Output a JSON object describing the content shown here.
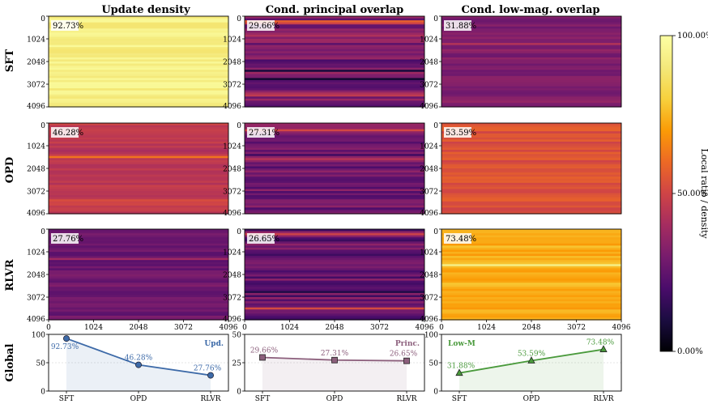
{
  "columns": [
    {
      "key": "update",
      "title": "Update density"
    },
    {
      "key": "principal",
      "title": "Cond. principal overlap"
    },
    {
      "key": "lowmag",
      "title": "Cond. low-mag. overlap"
    }
  ],
  "rows": [
    {
      "key": "sft",
      "label": "SFT"
    },
    {
      "key": "opd",
      "label": "OPD"
    },
    {
      "key": "rlvr",
      "label": "RLVR"
    }
  ],
  "global_row_label": "Global",
  "colorbar": {
    "label": "Local ratio / density",
    "ticks": [
      "0.00%",
      "50.00%",
      "100.00%"
    ],
    "colormap": "inferno"
  },
  "chart_data": [
    {
      "type": "heatmap",
      "title": "Update density",
      "xlim": [
        0,
        4096
      ],
      "ylim": [
        0,
        4096
      ],
      "x_ticks": [
        "0",
        "1024",
        "2048",
        "3072",
        "4096"
      ],
      "y_ticks": [
        "0",
        "1024",
        "2048",
        "3072",
        "4096"
      ],
      "cells": [
        {
          "row": "SFT",
          "value": 92.73,
          "label": "92.73%",
          "bands": [
            {
              "pos": 0.3,
              "delta": -0.05
            },
            {
              "pos": 0.38,
              "delta": -0.03
            },
            {
              "pos": 0.55,
              "delta": -0.02
            }
          ]
        },
        {
          "row": "OPD",
          "value": 46.28,
          "label": "46.28%",
          "bands": [
            {
              "pos": 0.38,
              "delta": 0.12
            },
            {
              "pos": 0.3,
              "delta": -0.06
            },
            {
              "pos": 0.78,
              "delta": -0.05
            },
            {
              "pos": 0.85,
              "delta": 0.05
            }
          ]
        },
        {
          "row": "RLVR",
          "value": 27.76,
          "label": "27.76%",
          "bands": [
            {
              "pos": 0.33,
              "delta": 0.1
            },
            {
              "pos": 0.36,
              "delta": -0.04
            },
            {
              "pos": 0.78,
              "delta": 0.06
            }
          ]
        }
      ]
    },
    {
      "type": "heatmap",
      "title": "Cond. principal overlap",
      "xlim": [
        0,
        4096
      ],
      "ylim": [
        0,
        4096
      ],
      "x_ticks": [
        "0",
        "1024",
        "2048",
        "3072",
        "4096"
      ],
      "y_ticks": [
        "0",
        "1024",
        "2048",
        "3072",
        "4096"
      ],
      "cells": [
        {
          "row": "SFT",
          "value": 29.66,
          "label": "29.66%",
          "bands": [
            {
              "pos": 0.07,
              "delta": 0.2
            },
            {
              "pos": 0.22,
              "delta": 0.12
            },
            {
              "pos": 0.6,
              "delta": -0.12
            },
            {
              "pos": 0.7,
              "delta": -0.14
            },
            {
              "pos": 0.86,
              "delta": 0.16
            }
          ]
        },
        {
          "row": "OPD",
          "value": 27.31,
          "label": "27.31%",
          "bands": [
            {
              "pos": 0.07,
              "delta": 0.18
            },
            {
              "pos": 0.4,
              "delta": 0.1
            },
            {
              "pos": 0.65,
              "delta": -0.12
            },
            {
              "pos": 0.72,
              "delta": -0.1
            },
            {
              "pos": 0.88,
              "delta": 0.14
            }
          ]
        },
        {
          "row": "RLVR",
          "value": 26.65,
          "label": "26.65%",
          "bands": [
            {
              "pos": 0.06,
              "delta": 0.18
            },
            {
              "pos": 0.4,
              "delta": 0.08
            },
            {
              "pos": 0.68,
              "delta": -0.12
            },
            {
              "pos": 0.87,
              "delta": 0.16
            }
          ]
        }
      ]
    },
    {
      "type": "heatmap",
      "title": "Cond. low-mag. overlap",
      "xlim": [
        0,
        4096
      ],
      "ylim": [
        0,
        4096
      ],
      "x_ticks": [
        "0",
        "1024",
        "2048",
        "3072",
        "4096"
      ],
      "y_ticks": [
        "0",
        "1024",
        "2048",
        "3072",
        "4096"
      ],
      "cells": [
        {
          "row": "SFT",
          "value": 31.88,
          "label": "31.88%",
          "bands": [
            {
              "pos": 0.3,
              "delta": 0.08
            },
            {
              "pos": 0.38,
              "delta": 0.04
            }
          ]
        },
        {
          "row": "OPD",
          "value": 53.59,
          "label": "53.59%",
          "bands": [
            {
              "pos": 0.35,
              "delta": 0.04
            }
          ]
        },
        {
          "row": "RLVR",
          "value": 73.48,
          "label": "73.48%",
          "bands": [
            {
              "pos": 0.4,
              "delta": 0.15
            }
          ]
        }
      ]
    },
    {
      "type": "line",
      "categories": [
        "SFT",
        "OPD",
        "RLVR"
      ],
      "series": [
        {
          "name": "Upd.",
          "values": [
            92.73,
            46.28,
            27.76
          ],
          "labels": [
            "92.73%",
            "46.28%",
            "27.76%"
          ],
          "color": "#3d6aa8",
          "marker": "circle"
        }
      ],
      "ylim": [
        0,
        100
      ],
      "y_ticks": [
        "0",
        "50",
        "100"
      ]
    },
    {
      "type": "line",
      "categories": [
        "SFT",
        "OPD",
        "RLVR"
      ],
      "series": [
        {
          "name": "Princ.",
          "values": [
            29.66,
            27.31,
            26.65
          ],
          "labels": [
            "29.66%",
            "27.31%",
            "26.65%"
          ],
          "color": "#8c5f7c",
          "marker": "square"
        }
      ],
      "ylim": [
        0,
        50
      ],
      "y_ticks": [
        "0",
        "25",
        "50"
      ]
    },
    {
      "type": "line",
      "categories": [
        "SFT",
        "OPD",
        "RLVR"
      ],
      "series": [
        {
          "name": "Low-M",
          "values": [
            31.88,
            53.59,
            73.48
          ],
          "labels": [
            "31.88%",
            "53.59%",
            "73.48%"
          ],
          "color": "#4a9a3c",
          "marker": "triangle"
        }
      ],
      "ylim": [
        0,
        100
      ],
      "y_ticks": [
        "0",
        "50",
        "100"
      ]
    }
  ]
}
